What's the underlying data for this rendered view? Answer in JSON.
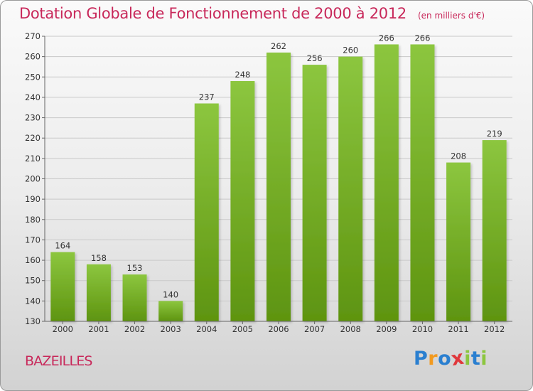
{
  "chart_data": {
    "type": "bar",
    "title": "Dotation Globale de Fonctionnement de 2000 à 2012",
    "subtitle": "(en milliers d'€)",
    "categories": [
      "2000",
      "2001",
      "2002",
      "2003",
      "2004",
      "2005",
      "2006",
      "2007",
      "2008",
      "2009",
      "2010",
      "2011",
      "2012"
    ],
    "values": [
      164,
      158,
      153,
      140,
      237,
      248,
      262,
      256,
      260,
      266,
      266,
      208,
      219
    ],
    "ylim": [
      130,
      270
    ],
    "yticks": [
      130,
      140,
      150,
      160,
      170,
      180,
      190,
      200,
      210,
      220,
      230,
      240,
      250,
      260,
      270
    ],
    "grid": true,
    "bar_color": "#8cc63f",
    "bar_color_dark": "#5e9410"
  },
  "commune": "BAZEILLES",
  "logo": {
    "letters": [
      "P",
      "r",
      "o",
      "x",
      "i",
      "t",
      "i"
    ],
    "colors": [
      "#2a7fd0",
      "#f29a1f",
      "#2a7fd0",
      "#e0383c",
      "#8cc63f",
      "#2a7fd0",
      "#8cc63f"
    ]
  }
}
